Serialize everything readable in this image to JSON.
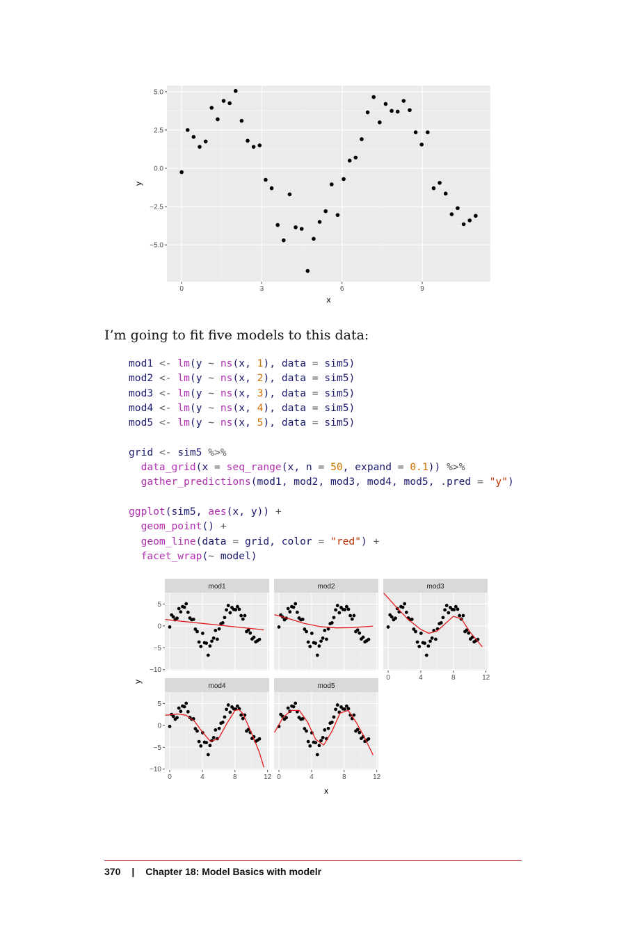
{
  "page": {
    "intro_text": "I’m going to fit five models to this data:",
    "footer": {
      "page_number": "370",
      "separator": "|",
      "chapter": "Chapter 18: Model Basics with modelr"
    }
  },
  "code_lines": [
    "mod1 <- lm(y ~ ns(x, 1), data = sim5)",
    "mod2 <- lm(y ~ ns(x, 2), data = sim5)",
    "mod3 <- lm(y ~ ns(x, 3), data = sim5)",
    "mod4 <- lm(y ~ ns(x, 4), data = sim5)",
    "mod5 <- lm(y ~ ns(x, 5), data = sim5)",
    "",
    "grid <- sim5 %>%",
    "  data_grid(x = seq_range(x, n = 50, expand = 0.1)) %>%",
    "  gather_predictions(mod1, mod2, mod3, mod4, mod5, .pred = \"y\")",
    "",
    "ggplot(sim5, aes(x, y)) +",
    "  geom_point() +",
    "  geom_line(data = grid, color = \"red\") +",
    "  facet_wrap(~ model)"
  ],
  "chart_data": [
    {
      "type": "scatter",
      "xlabel": "x",
      "ylabel": "y",
      "xlim": [
        -0.55,
        11.55
      ],
      "ylim": [
        -7.4,
        5.4
      ],
      "xticks": [
        0,
        3,
        6,
        9
      ],
      "xtick_labels": [
        "0",
        "3",
        "6",
        "9"
      ],
      "yticks": [
        -5,
        -2.5,
        0,
        2.5,
        5
      ],
      "ytick_labels": [
        "−5.0",
        "−2.5",
        "0.0",
        "2.5",
        "5.0"
      ],
      "grid": true,
      "x": [
        0,
        0.2245,
        0.449,
        0.6735,
        0.898,
        1.1224,
        1.3469,
        1.5714,
        1.7959,
        2.0204,
        2.2449,
        2.4694,
        2.6939,
        2.9184,
        3.1429,
        3.3673,
        3.5918,
        3.8163,
        4.0408,
        4.2653,
        4.4898,
        4.7143,
        4.9388,
        5.1633,
        5.3878,
        5.6122,
        5.8367,
        6.0612,
        6.2857,
        6.5102,
        6.7347,
        6.9592,
        7.1837,
        7.4082,
        7.6327,
        7.8571,
        8.0816,
        8.3061,
        8.5306,
        8.7551,
        8.9796,
        9.2041,
        9.4286,
        9.6531,
        9.8776,
        10.102,
        10.3265,
        10.551,
        10.7755,
        11
      ],
      "y": [
        -0.25,
        2.5,
        2.05,
        1.4,
        1.75,
        3.95,
        3.2,
        4.4,
        4.25,
        5.05,
        3.1,
        1.8,
        1.4,
        1.5,
        -0.75,
        -1.3,
        -3.7,
        -4.7,
        -1.7,
        -3.85,
        -3.95,
        -6.7,
        -4.6,
        -3.5,
        -2.8,
        -1.05,
        -3.05,
        -0.7,
        0.5,
        0.7,
        1.9,
        3.65,
        4.65,
        3.0,
        4.2,
        3.75,
        3.7,
        4.4,
        3.8,
        2.35,
        1.55,
        2.35,
        -1.3,
        -0.95,
        -1.65,
        -3.0,
        -2.6,
        -3.65,
        -3.4,
        -3.1
      ]
    },
    {
      "type": "line",
      "xlabel": "x",
      "ylabel": "y",
      "panels": [
        "mod1",
        "mod2",
        "mod3",
        "mod4",
        "mod5"
      ],
      "xlim": [
        -0.6,
        12.2
      ],
      "ylim": [
        -10.2,
        7.6
      ],
      "xticks": [
        0,
        4,
        8,
        12
      ],
      "xtick_labels": [
        "0",
        "4",
        "8",
        "12"
      ],
      "yticks": [
        -10,
        -5,
        0,
        5
      ],
      "ytick_labels": [
        "−10",
        "−5",
        "0",
        "5"
      ],
      "grid": true,
      "line_color": "#e41a1c",
      "series": [
        {
          "name": "mod1",
          "x": [
            -0.55,
            11.55
          ],
          "y": [
            1.45,
            -0.9
          ]
        },
        {
          "name": "mod2",
          "x": [
            -0.55,
            1.5,
            3.0,
            5.0,
            7.0,
            9.0,
            11.55
          ],
          "y": [
            2.55,
            1.5,
            0.6,
            -0.15,
            -0.45,
            -0.4,
            -0.05
          ]
        },
        {
          "name": "mod3",
          "x": [
            -0.55,
            1.0,
            2.5,
            4.0,
            5.0,
            6.0,
            7.0,
            8.0,
            9.0,
            10.0,
            11.55
          ],
          "y": [
            7.5,
            4.3,
            1.4,
            -0.8,
            -1.7,
            -1.2,
            0.5,
            2.2,
            1.6,
            -1.3,
            -4.8
          ]
        },
        {
          "name": "mod4",
          "x": [
            -0.55,
            1.0,
            2.0,
            3.0,
            4.0,
            5.0,
            6.0,
            7.0,
            8.0,
            8.5,
            9.0,
            10.0,
            11.0,
            11.55
          ],
          "y": [
            2.3,
            2.6,
            2.3,
            1.0,
            -1.5,
            -3.7,
            -3.0,
            0.4,
            3.4,
            3.6,
            2.6,
            -1.6,
            -6.2,
            -9.6
          ]
        },
        {
          "name": "mod5",
          "x": [
            -0.55,
            0.5,
            1.5,
            2.5,
            3.5,
            4.5,
            5.5,
            6.5,
            7.5,
            8.5,
            9.5,
            10.5,
            11.55
          ],
          "y": [
            -1.6,
            1.8,
            3.4,
            3.4,
            0.8,
            -3.2,
            -4.5,
            -1.4,
            2.8,
            3.4,
            0.6,
            -2.8,
            -6.8
          ]
        }
      ]
    }
  ]
}
